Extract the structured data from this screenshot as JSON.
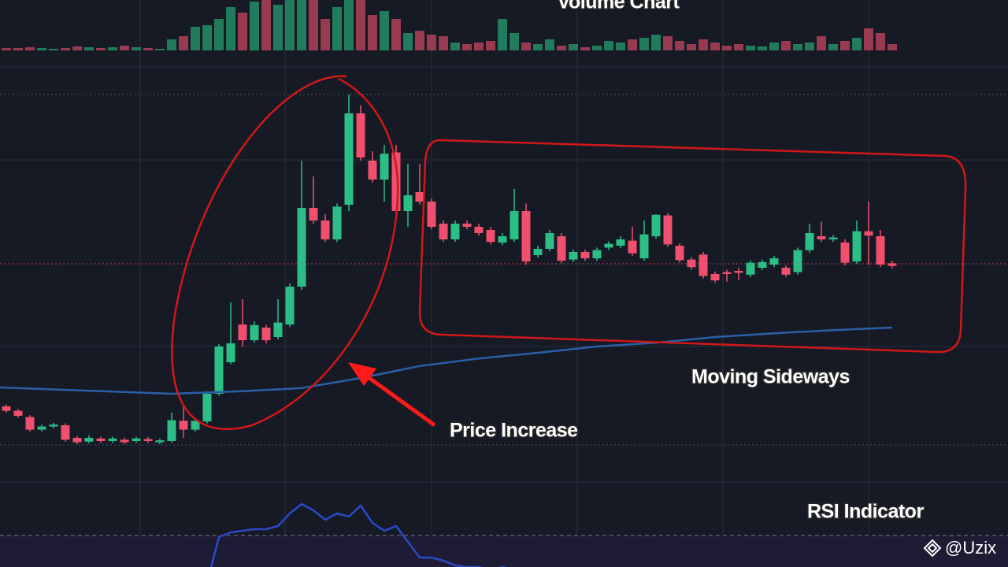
{
  "chart_data": {
    "type": "candlestick",
    "title": "Volume Chart",
    "annotations": [
      "Price Increase",
      "Moving Sideways",
      "RSI Indicator"
    ],
    "watermark": "@Uzix",
    "up_color": "#2dbd86",
    "down_color": "#f0506e",
    "ylim": [
      0,
      65
    ],
    "open": [
      10.5,
      9.8,
      8.8,
      6.8,
      7.3,
      7.5,
      5.5,
      4.9,
      5.4,
      5,
      5.2,
      5,
      5.3,
      4.8,
      5,
      8.2,
      6.8,
      8.1,
      12.5,
      17.5,
      23.5,
      21,
      23,
      21.5,
      23.5,
      29.5,
      42,
      40,
      37,
      42.5,
      57,
      49.5,
      46.5,
      50.8,
      41.5,
      44.5,
      43,
      39.5,
      37,
      39.5,
      39,
      38.5,
      36.5,
      37,
      41.5,
      34.5,
      35.5,
      37.5,
      33.8,
      35,
      34,
      35.7,
      36,
      36.8,
      34,
      37.5,
      40.8,
      36,
      33.8,
      34.6,
      31.5,
      31.8,
      32,
      31.4,
      32.5,
      33,
      32.5,
      31.8,
      35.3,
      37.5,
      37,
      36.5,
      33.5,
      38.3,
      37.5,
      33.2
    ],
    "high": [
      10.8,
      10.1,
      9.1,
      7.6,
      7.9,
      7.8,
      5.8,
      5.9,
      5.7,
      5.7,
      5.5,
      5.7,
      5.6,
      5.4,
      9.5,
      10.5,
      8.6,
      12.9,
      20.4,
      27,
      27.5,
      24,
      23.4,
      27.5,
      30,
      49.5,
      47,
      41,
      42.7,
      60,
      58.3,
      51,
      52,
      52,
      49,
      49,
      43.5,
      40,
      40,
      40,
      39.5,
      39,
      38,
      45,
      42.7,
      36,
      38.5,
      38,
      35.4,
      35.4,
      35.7,
      36.7,
      37.5,
      39,
      40,
      41,
      41.2,
      36.4,
      34.2,
      35,
      31.9,
      32.2,
      32.5,
      33.7,
      33.8,
      34.4,
      32.9,
      35.7,
      39.5,
      39.8,
      37.7,
      37,
      40,
      43,
      38.5,
      33.6
    ],
    "low": [
      9.5,
      8.7,
      6.5,
      6.5,
      7,
      4.9,
      4.5,
      4.6,
      4.7,
      4.7,
      4.5,
      4.7,
      4.7,
      4.5,
      4.7,
      5.5,
      6.5,
      7.8,
      12.2,
      17.2,
      20,
      20.6,
      20.5,
      21.1,
      23.1,
      29,
      39.5,
      36.6,
      36.6,
      41.5,
      49.5,
      46,
      43,
      40,
      39,
      42.5,
      38.6,
      36.6,
      36.6,
      38.6,
      37.6,
      36.2,
      36.1,
      36.6,
      33,
      34.1,
      35.1,
      33.2,
      33.4,
      33.6,
      33.6,
      35.3,
      35.6,
      34.4,
      33.6,
      37.1,
      35.8,
      33.3,
      32.2,
      30.8,
      30.1,
      30.3,
      30.5,
      31,
      32.1,
      32.6,
      31,
      31.4,
      34.9,
      36.6,
      36.6,
      32.9,
      33.1,
      33,
      32.6,
      32.4
    ],
    "close": [
      9.8,
      9,
      6.8,
      7.3,
      7.6,
      5.2,
      4.8,
      5.5,
      5,
      5.4,
      4.8,
      5.4,
      5,
      5.1,
      8.3,
      6.8,
      8.2,
      12.5,
      20,
      20.5,
      21,
      23.4,
      21,
      23.8,
      29.5,
      42,
      40,
      37,
      42.2,
      57,
      50,
      46.5,
      50.6,
      41.5,
      44,
      43,
      39,
      37,
      39.5,
      39,
      38,
      36.6,
      37.5,
      41.5,
      33.5,
      35.5,
      38,
      33.6,
      35,
      34,
      35.3,
      36.3,
      37,
      34.8,
      37.8,
      40.9,
      36.2,
      33.7,
      32.6,
      31.2,
      30.5,
      31.5,
      31.7,
      33.3,
      33.4,
      34,
      31.4,
      35.3,
      38,
      37,
      37.3,
      33.3,
      38.3,
      37.6,
      33,
      32.8
    ],
    "volume": [
      3,
      3,
      4,
      3,
      2,
      3,
      5,
      4,
      3,
      4,
      6,
      4,
      3,
      2,
      14,
      18,
      30,
      32,
      40,
      55,
      48,
      62,
      70,
      58,
      65,
      90,
      80,
      40,
      55,
      90,
      70,
      45,
      50,
      40,
      22,
      25,
      20,
      18,
      10,
      8,
      10,
      12,
      40,
      22,
      10,
      8,
      14,
      6,
      8,
      4,
      6,
      12,
      10,
      14,
      16,
      20,
      18,
      12,
      8,
      14,
      10,
      6,
      8,
      6,
      5,
      10,
      12,
      8,
      10,
      18,
      8,
      12,
      16,
      28,
      22,
      8
    ],
    "ma": {
      "color": "#2a5fa8",
      "x": [
        0,
        14,
        20,
        25,
        30,
        35,
        40,
        45,
        50,
        55,
        60,
        65,
        70,
        75
      ],
      "values": [
        13.5,
        12.5,
        12.9,
        13.4,
        15,
        16.9,
        18.1,
        19,
        20,
        20.6,
        21.5,
        22.1,
        22.6,
        23
      ]
    },
    "rsi": {
      "color": "#2b49c9",
      "values": [
        null,
        null,
        null,
        null,
        null,
        null,
        null,
        null,
        null,
        null,
        null,
        null,
        null,
        null,
        null,
        null,
        null,
        55,
        69.5,
        71,
        71.5,
        72,
        72,
        73,
        77,
        80,
        78,
        75,
        77,
        76,
        79.5,
        74,
        71.5,
        73,
        68,
        63,
        63,
        62,
        60.5,
        60,
        60,
        59,
        60,
        59,
        null,
        null,
        null,
        null,
        null,
        null,
        null,
        null,
        null,
        null,
        null,
        null,
        null,
        null,
        null,
        null,
        null,
        null,
        null,
        null,
        null,
        null,
        null,
        null,
        null,
        null,
        null,
        null,
        null,
        null,
        null,
        null
      ]
    }
  }
}
